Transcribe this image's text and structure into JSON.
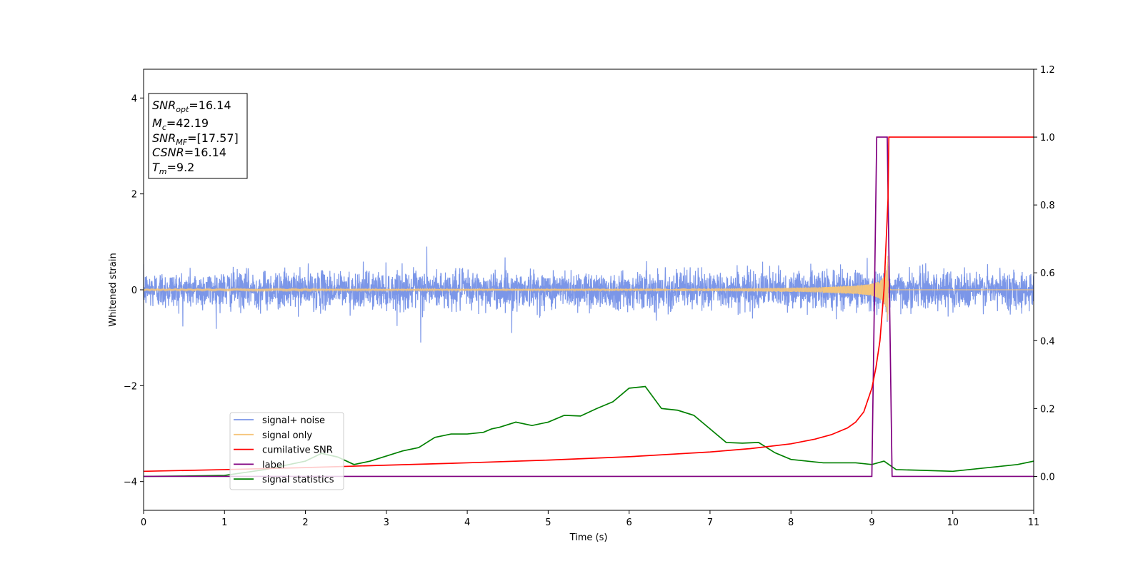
{
  "chart_data": {
    "type": "line",
    "xlabel": "Time (s)",
    "ylabel": "Whitened strain",
    "xlim": [
      0,
      11
    ],
    "ylim_left": [
      -4.6,
      4.6
    ],
    "ylim_right": [
      -0.1,
      1.2
    ],
    "x_ticks": [
      0,
      1,
      2,
      3,
      4,
      5,
      6,
      7,
      8,
      9,
      10,
      11
    ],
    "y_ticks_left": [
      -4,
      -2,
      0,
      2,
      4
    ],
    "y_tick_labels_left": [
      "−4",
      "−2",
      "0",
      "2",
      "4"
    ],
    "y_ticks_right": [
      0.0,
      0.2,
      0.4,
      0.6,
      0.8,
      1.0,
      1.2
    ],
    "y_tick_labels_right": [
      "0.0",
      "0.2",
      "0.4",
      "0.6",
      "0.8",
      "1.0",
      "1.2"
    ],
    "legend_position": "lower-left",
    "annotation": {
      "lines": [
        {
          "sym": "SNR",
          "sub": "opt",
          "value": "=16.14"
        },
        {
          "sym": "M",
          "sub": "c",
          "value": "=42.19"
        },
        {
          "sym": "SNR",
          "sub": "MF",
          "value": "=[17.57]"
        },
        {
          "sym": "CSNR",
          "sub": "",
          "value": "=16.14"
        },
        {
          "sym": "T",
          "sub": "m",
          "value": "=9.2"
        }
      ]
    },
    "series": [
      {
        "name": "signal+ noise",
        "axis": "left",
        "color": "#7b96e8",
        "noise_amplitude": 0.35,
        "envelope_max": 0.9,
        "envelope_min": -1.1
      },
      {
        "name": "signal only",
        "axis": "left",
        "color": "#f5c57a",
        "merger_time": 9.2,
        "peak_amplitude": 0.9
      },
      {
        "name": "cumilative SNR",
        "axis": "right",
        "color": "#ff0000",
        "x": [
          0,
          1,
          2,
          3,
          4,
          5,
          6,
          7,
          7.5,
          8,
          8.3,
          8.5,
          8.7,
          8.8,
          8.9,
          9.0,
          9.05,
          9.1,
          9.15,
          9.2,
          9.21,
          11
        ],
        "y": [
          0.015,
          0.02,
          0.026,
          0.033,
          0.04,
          0.048,
          0.058,
          0.072,
          0.082,
          0.096,
          0.11,
          0.123,
          0.143,
          0.16,
          0.19,
          0.26,
          0.32,
          0.4,
          0.55,
          0.82,
          1.0,
          1.0
        ]
      },
      {
        "name": "label",
        "axis": "right",
        "color": "#800080",
        "x": [
          0,
          9.0,
          9.06,
          9.19,
          9.25,
          11
        ],
        "y": [
          0,
          0,
          1,
          1,
          0,
          0
        ]
      },
      {
        "name": "signal statistics",
        "axis": "right",
        "color": "#008000",
        "x": [
          0,
          0.5,
          1.0,
          1.5,
          1.8,
          2.0,
          2.2,
          2.4,
          2.6,
          2.8,
          3.0,
          3.2,
          3.4,
          3.6,
          3.8,
          4.0,
          4.2,
          4.3,
          4.4,
          4.6,
          4.8,
          5.0,
          5.2,
          5.4,
          5.6,
          5.8,
          6.0,
          6.2,
          6.4,
          6.6,
          6.8,
          7.0,
          7.2,
          7.4,
          7.6,
          7.8,
          8.0,
          8.2,
          8.4,
          8.6,
          8.8,
          9.0,
          9.15,
          9.3,
          9.6,
          10.0,
          10.4,
          10.8,
          11.0
        ],
        "y": [
          0.0,
          0.001,
          0.003,
          0.02,
          0.035,
          0.045,
          0.068,
          0.057,
          0.035,
          0.045,
          0.06,
          0.075,
          0.085,
          0.115,
          0.125,
          0.125,
          0.13,
          0.14,
          0.145,
          0.16,
          0.15,
          0.16,
          0.18,
          0.178,
          0.2,
          0.22,
          0.26,
          0.265,
          0.2,
          0.195,
          0.18,
          0.14,
          0.1,
          0.098,
          0.1,
          0.07,
          0.05,
          0.045,
          0.04,
          0.04,
          0.04,
          0.035,
          0.045,
          0.02,
          0.018,
          0.015,
          0.025,
          0.035,
          0.045
        ]
      }
    ]
  }
}
